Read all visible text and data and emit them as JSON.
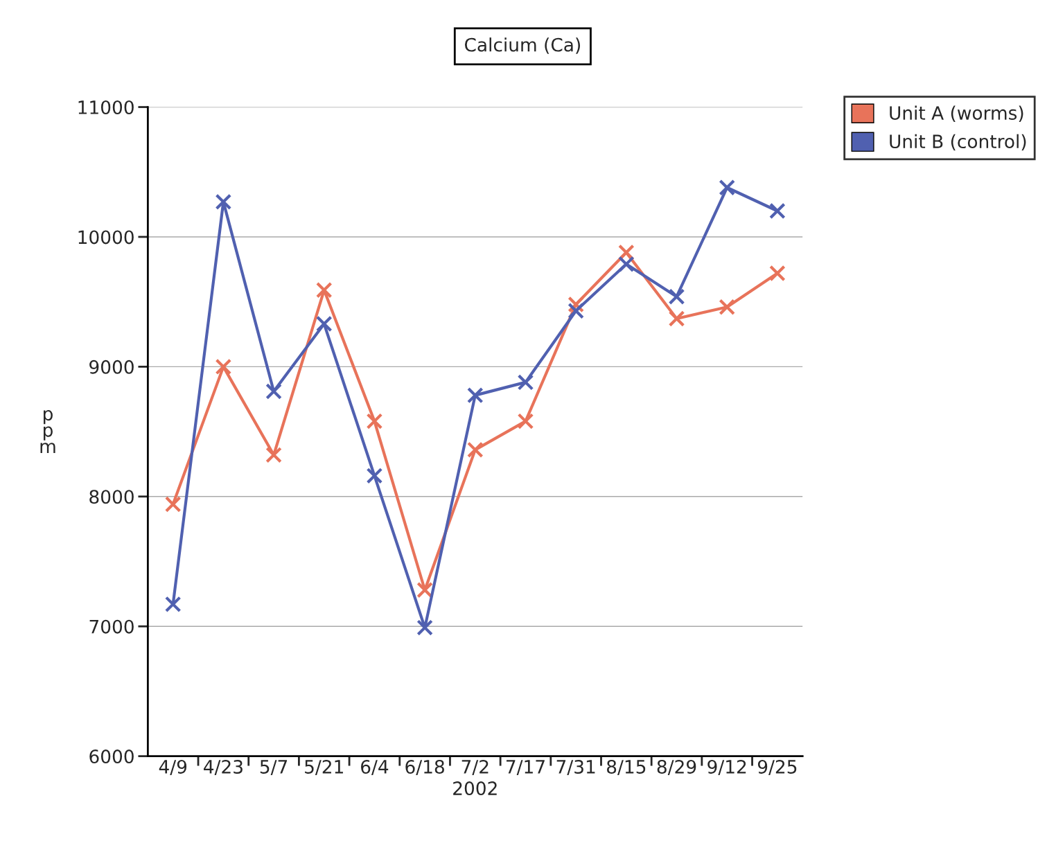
{
  "chart_data": {
    "type": "line",
    "title": "Calcium (Ca)",
    "xlabel": "2002",
    "ylabel": "ppm",
    "categories": [
      "4/9",
      "4/23",
      "5/7",
      "5/21",
      "6/4",
      "6/18",
      "7/2",
      "7/17",
      "7/31",
      "8/15",
      "8/29",
      "9/12",
      "9/25"
    ],
    "series": [
      {
        "name": "Unit A (worms)",
        "color": "#e8735a",
        "values": [
          7940,
          9000,
          8320,
          9590,
          8580,
          7280,
          8360,
          8580,
          9480,
          9880,
          9370,
          9460,
          9720
        ]
      },
      {
        "name": "Unit B (control)",
        "color": "#5060b0",
        "values": [
          7170,
          10270,
          8810,
          9330,
          8160,
          6990,
          8780,
          8880,
          9430,
          9790,
          9540,
          10380,
          10200
        ]
      }
    ],
    "ylim": [
      6000,
      11000
    ],
    "yticks": [
      6000,
      7000,
      8000,
      9000,
      10000,
      11000
    ],
    "grid": "y",
    "legend": "top right",
    "marker": "cross",
    "line_style": "solid"
  }
}
